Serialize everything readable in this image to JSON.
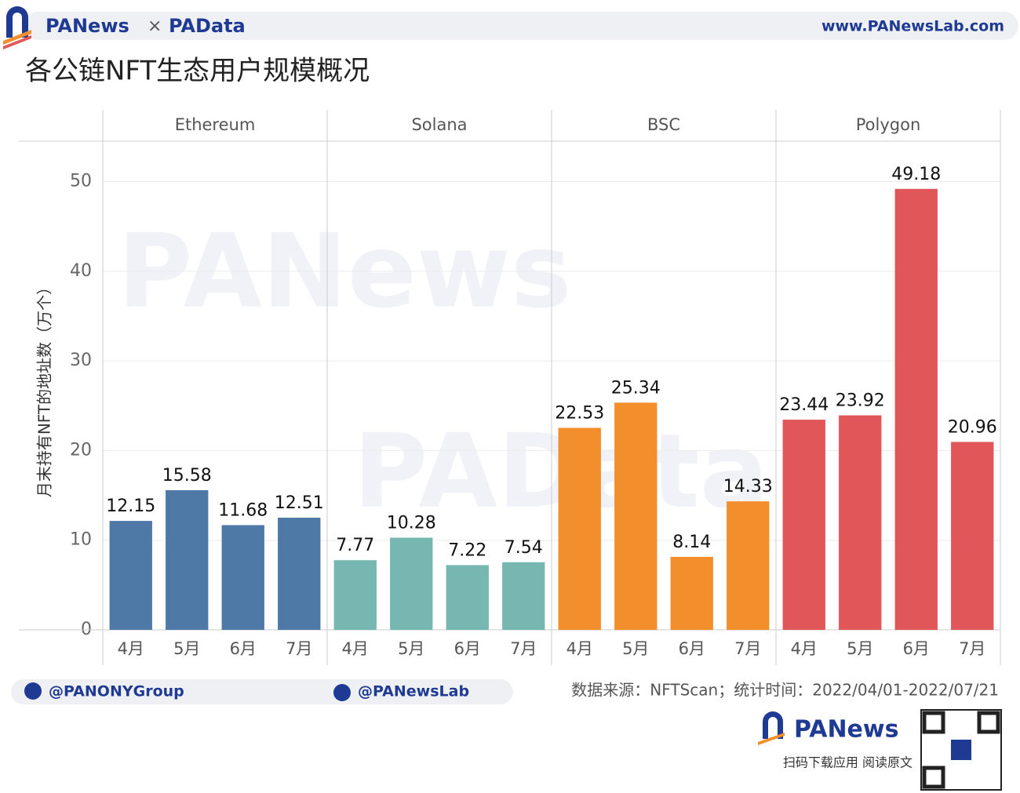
{
  "header": {
    "brands": [
      "PANews",
      "PAData"
    ],
    "separator": "×",
    "website": "www.PANewsLab.com"
  },
  "chart_data": {
    "type": "bar",
    "title": "各公链NFT生态用户规模概况",
    "y_label": "月末持有NFT的地址数（万个）",
    "categories": [
      "4月",
      "5月",
      "6月",
      "7月"
    ],
    "series": [
      {
        "name": "Ethereum",
        "color": "#4e79a7",
        "values": [
          12.15,
          15.58,
          11.68,
          12.51
        ]
      },
      {
        "name": "Solana",
        "color": "#76b7b2",
        "values": [
          7.77,
          10.28,
          7.22,
          7.54
        ]
      },
      {
        "name": "BSC",
        "color": "#f28e2b",
        "values": [
          22.53,
          25.34,
          8.14,
          14.33
        ]
      },
      {
        "name": "Polygon",
        "color": "#e15759",
        "values": [
          23.44,
          23.92,
          49.18,
          20.96
        ]
      }
    ],
    "ylim": [
      0,
      54.5
    ],
    "yticks": [
      0,
      10,
      20,
      30,
      40,
      50
    ],
    "grid": true
  },
  "watermarks": [
    "PANews",
    "PAData"
  ],
  "footer": {
    "twitter": "@PANONYGroup",
    "facebook": "@PANewsLab",
    "source": "数据来源：NFTScan；统计时间：2022/04/01-2022/07/21",
    "logo": "PANews",
    "slogan": "扫码下载应用 阅读原文"
  }
}
